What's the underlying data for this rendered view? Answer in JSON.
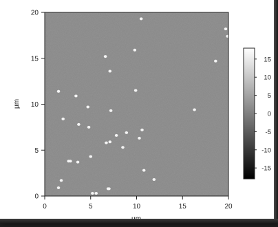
{
  "image": {
    "x_axis": {
      "label": "µm",
      "ticks": [
        "0",
        "5",
        "10",
        "15",
        "20"
      ],
      "range": [
        0,
        20
      ]
    },
    "y_axis": {
      "label": "µm",
      "ticks": [
        "0",
        "5",
        "10",
        "15",
        "20"
      ],
      "range": [
        0,
        20
      ]
    },
    "colorbar": {
      "ticks": [
        "15",
        "10",
        "5",
        "0",
        "-5",
        "-10",
        "-15"
      ],
      "range": [
        -18,
        18
      ],
      "colors": {
        "top": "#ffffff",
        "bottom": "#000000"
      }
    },
    "surface_color": "#8a8a8a",
    "particles": [
      [
        10.5,
        19.3
      ],
      [
        19.7,
        18.2
      ],
      [
        19.9,
        17.4
      ],
      [
        9.8,
        15.9
      ],
      [
        6.6,
        15.2
      ],
      [
        18.6,
        14.7
      ],
      [
        7.1,
        13.6
      ],
      [
        1.5,
        11.4
      ],
      [
        9.9,
        11.5
      ],
      [
        3.4,
        10.9
      ],
      [
        4.7,
        9.7
      ],
      [
        7.2,
        9.3
      ],
      [
        16.3,
        9.4
      ],
      [
        2.0,
        8.4
      ],
      [
        3.7,
        7.8
      ],
      [
        4.8,
        7.5
      ],
      [
        10.6,
        7.2
      ],
      [
        8.9,
        6.9
      ],
      [
        7.8,
        6.6
      ],
      [
        10.3,
        6.3
      ],
      [
        6.7,
        5.8
      ],
      [
        7.1,
        5.9
      ],
      [
        8.5,
        5.3
      ],
      [
        5.0,
        4.3
      ],
      [
        2.6,
        3.8
      ],
      [
        2.8,
        3.8
      ],
      [
        3.6,
        3.7
      ],
      [
        10.8,
        2.8
      ],
      [
        11.9,
        1.8
      ],
      [
        1.8,
        1.7
      ],
      [
        1.5,
        0.9
      ],
      [
        6.9,
        0.8
      ],
      [
        7.0,
        0.8
      ],
      [
        5.2,
        0.3
      ],
      [
        5.6,
        0.3
      ]
    ]
  }
}
